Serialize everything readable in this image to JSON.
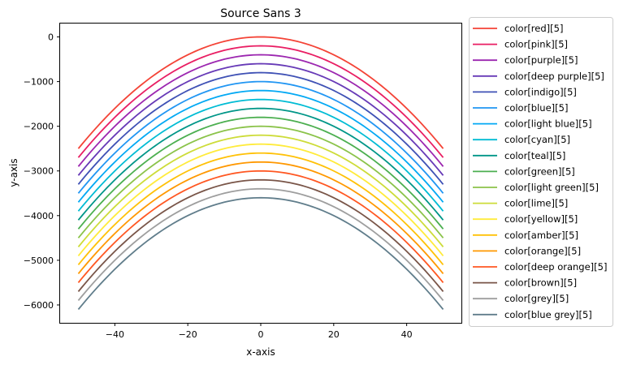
{
  "chart_data": {
    "type": "line",
    "title": "Source Sans 3",
    "xlabel": "x-axis",
    "ylabel": "y-axis",
    "xlim": [
      -55,
      55
    ],
    "ylim": [
      -6400,
      300
    ],
    "xticks": [
      -40,
      -20,
      0,
      20,
      40
    ],
    "yticks": [
      0,
      -1000,
      -2000,
      -3000,
      -4000,
      -5000,
      -6000
    ],
    "xtick_labels": [
      "−40",
      "−20",
      "0",
      "20",
      "40"
    ],
    "ytick_labels": [
      "0",
      "−1000",
      "−2000",
      "−3000",
      "−4000",
      "−5000",
      "−6000"
    ],
    "x_range": [
      -50,
      50
    ],
    "curve": "y = -x^2 + offset",
    "grid": false,
    "legend_position": "outside-right",
    "series": [
      {
        "name": "color[red][5]",
        "color": "#f44336",
        "offset": 0
      },
      {
        "name": "color[pink][5]",
        "color": "#e91e63",
        "offset": -200
      },
      {
        "name": "color[purple][5]",
        "color": "#9c27b0",
        "offset": -400
      },
      {
        "name": "color[deep purple][5]",
        "color": "#673ab7",
        "offset": -600
      },
      {
        "name": "color[indigo][5]",
        "color": "#3f51b5",
        "offset": -800
      },
      {
        "name": "color[blue][5]",
        "color": "#2196f3",
        "offset": -1000
      },
      {
        "name": "color[light blue][5]",
        "color": "#03a9f4",
        "offset": -1200
      },
      {
        "name": "color[cyan][5]",
        "color": "#00bcd4",
        "offset": -1400
      },
      {
        "name": "color[teal][5]",
        "color": "#009688",
        "offset": -1600
      },
      {
        "name": "color[green][5]",
        "color": "#4caf50",
        "offset": -1800
      },
      {
        "name": "color[light green][5]",
        "color": "#8bc34a",
        "offset": -2000
      },
      {
        "name": "color[lime][5]",
        "color": "#cddc39",
        "offset": -2200
      },
      {
        "name": "color[yellow][5]",
        "color": "#ffeb3b",
        "offset": -2400
      },
      {
        "name": "color[amber][5]",
        "color": "#ffc107",
        "offset": -2600
      },
      {
        "name": "color[orange][5]",
        "color": "#ff9800",
        "offset": -2800
      },
      {
        "name": "color[deep orange][5]",
        "color": "#ff5722",
        "offset": -3000
      },
      {
        "name": "color[brown][5]",
        "color": "#795548",
        "offset": -3200
      },
      {
        "name": "color[grey][5]",
        "color": "#9e9e9e",
        "offset": -3400
      },
      {
        "name": "color[blue grey][5]",
        "color": "#607d8b",
        "offset": -3600
      }
    ]
  }
}
